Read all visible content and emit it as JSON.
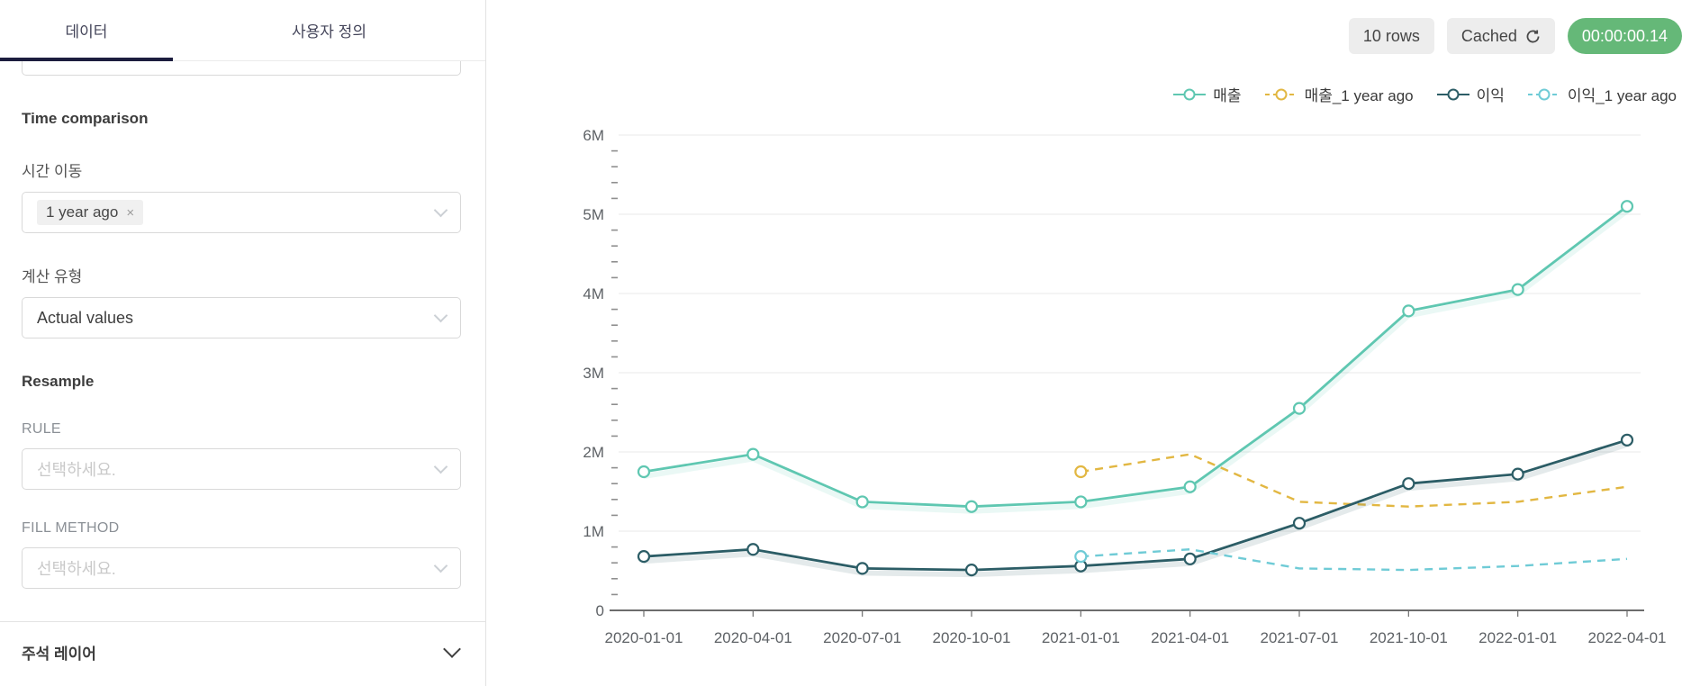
{
  "sidebar": {
    "tabs": [
      {
        "label": "데이터"
      },
      {
        "label": "사용자 정의"
      }
    ],
    "time_comparison": {
      "section_title": "Time comparison",
      "time_shift_label": "시간 이동",
      "time_shift_value": "1 year ago",
      "calc_type_label": "계산 유형",
      "calc_type_value": "Actual values"
    },
    "resample": {
      "section_title": "Resample",
      "rule_label": "RULE",
      "rule_placeholder": "선택하세요.",
      "fill_method_label": "FILL METHOD",
      "fill_method_placeholder": "선택하세요."
    },
    "annotation_section_title": "주석 레이어"
  },
  "header": {
    "rows_badge": "10 rows",
    "cached_badge": "Cached",
    "timer_badge": "00:00:00.14",
    "timer_color": "#65b878"
  },
  "icons": {
    "close": "×"
  },
  "chart_data": {
    "type": "line",
    "x": [
      "2020-01-01",
      "2020-04-01",
      "2020-07-01",
      "2020-10-01",
      "2021-01-01",
      "2021-04-01",
      "2021-07-01",
      "2021-10-01",
      "2022-01-01",
      "2022-04-01"
    ],
    "series": [
      {
        "name": "매출",
        "color": "#5fc7b1",
        "dashed": false,
        "values": [
          1750000,
          1970000,
          1370000,
          1310000,
          1370000,
          1560000,
          2550000,
          3780000,
          4050000,
          5100000
        ]
      },
      {
        "name": "매출_1 year ago",
        "color": "#e2b742",
        "dashed": true,
        "values": [
          null,
          null,
          null,
          null,
          1750000,
          1970000,
          1370000,
          1310000,
          1370000,
          1560000
        ]
      },
      {
        "name": "이익",
        "color": "#2c5d66",
        "dashed": false,
        "values": [
          680000,
          770000,
          530000,
          510000,
          560000,
          650000,
          1100000,
          1600000,
          1720000,
          2150000
        ]
      },
      {
        "name": "이익_1 year ago",
        "color": "#6fcbd6",
        "dashed": true,
        "values": [
          null,
          null,
          null,
          null,
          680000,
          770000,
          530000,
          510000,
          560000,
          650000
        ]
      }
    ],
    "ylim": [
      0,
      6000000
    ],
    "ytick_labels": [
      "0",
      "1M",
      "2M",
      "3M",
      "4M",
      "5M",
      "6M"
    ],
    "grid": true,
    "legend_position": "top-right",
    "title": "",
    "xlabel": "",
    "ylabel": ""
  }
}
